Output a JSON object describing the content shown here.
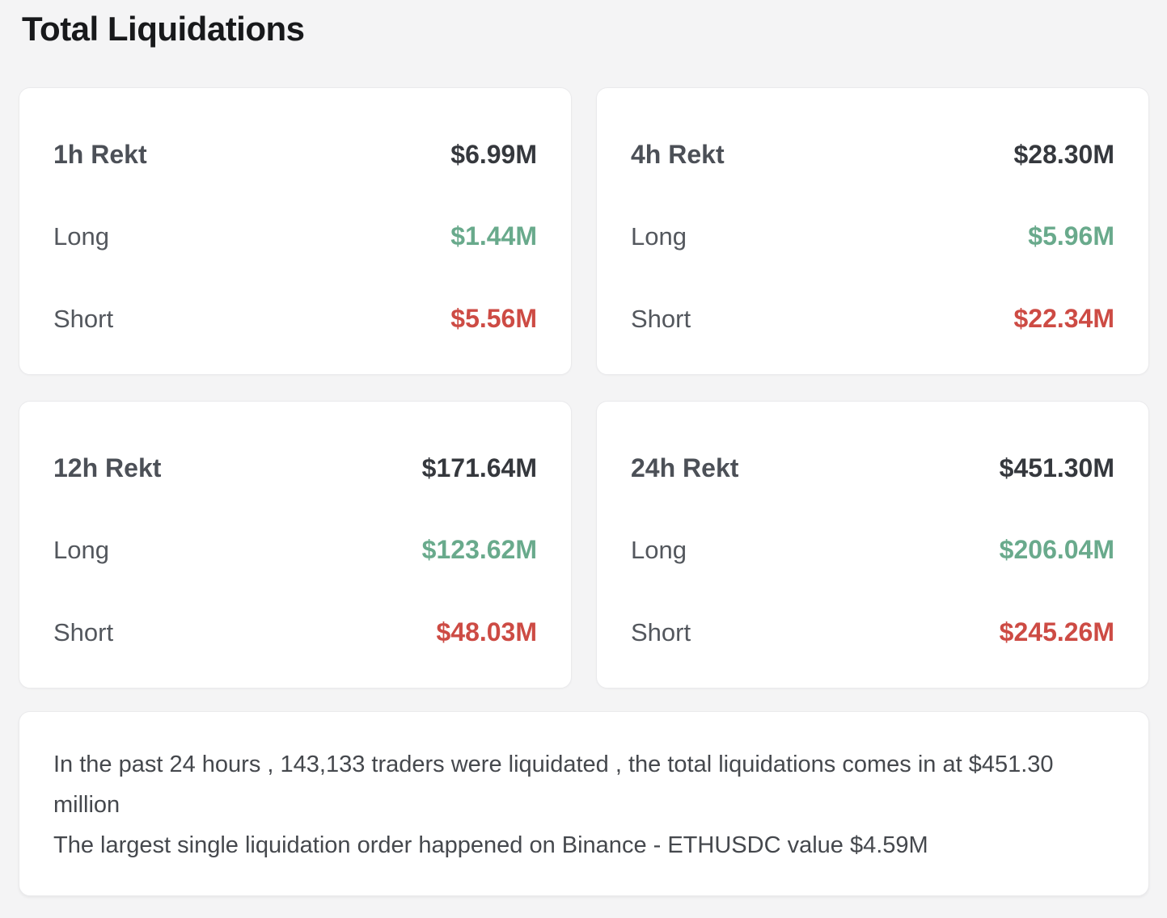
{
  "page": {
    "title": "Total Liquidations",
    "background_color": "#f4f4f5"
  },
  "colors": {
    "long_green": "#69aa8c",
    "short_red": "#cd4b44",
    "total_dark": "#35383d",
    "label_gray": "#53575d"
  },
  "cards": [
    {
      "period": "1h Rekt",
      "total": "$6.99M",
      "long_label": "Long",
      "long": "$1.44M",
      "short_label": "Short",
      "short": "$5.56M"
    },
    {
      "period": "4h Rekt",
      "total": "$28.30M",
      "long_label": "Long",
      "long": "$5.96M",
      "short_label": "Short",
      "short": "$22.34M"
    },
    {
      "period": "12h Rekt",
      "total": "$171.64M",
      "long_label": "Long",
      "long": "$123.62M",
      "short_label": "Short",
      "short": "$48.03M"
    },
    {
      "period": "24h Rekt",
      "total": "$451.30M",
      "long_label": "Long",
      "long": "$206.04M",
      "short_label": "Short",
      "short": "$245.26M"
    }
  ],
  "summary": {
    "sentence1": "In the past 24 hours , 143,133 traders were liquidated , the total liquidations comes in at $451.30 million",
    "sentence2": "The largest single liquidation order happened on Binance - ETHUSDC value $4.59M"
  }
}
